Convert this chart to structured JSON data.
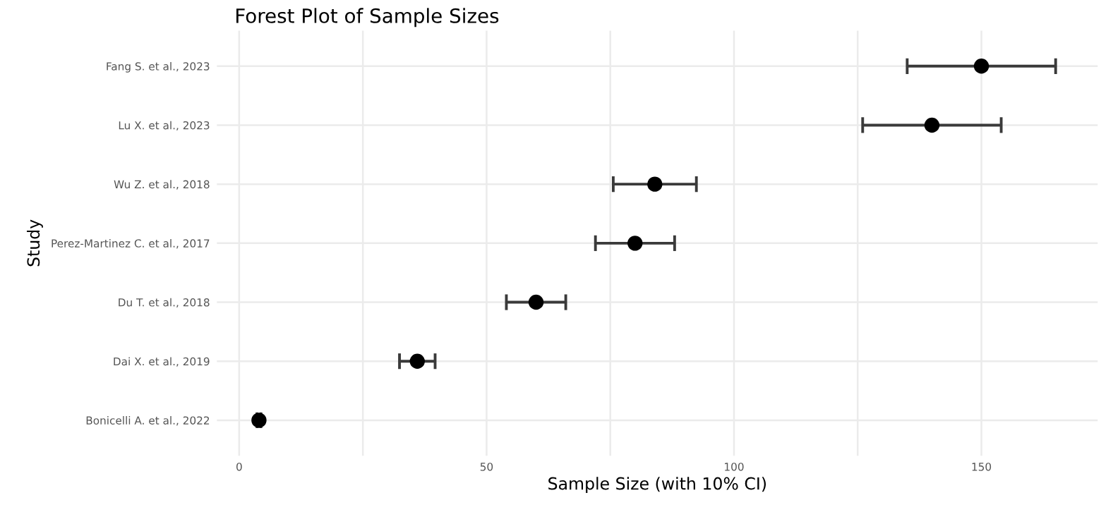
{
  "chart_data": {
    "type": "scatter",
    "orientation": "horizontal",
    "title": "Forest Plot of Sample Sizes",
    "xlabel": "Sample Size (with 10% CI)",
    "ylabel": "Study",
    "categories": [
      "Fang S. et al., 2023",
      "Lu X. et al., 2023",
      "Wu Z. et al., 2018",
      "Perez-Martinez C. et al., 2017",
      "Du T. et al., 2018",
      "Dai X. et al., 2019",
      "Bonicelli A. et al., 2022"
    ],
    "values": [
      150,
      140,
      84,
      80,
      60,
      36,
      4
    ],
    "errors": [
      15,
      14,
      8.4,
      8,
      6,
      3.6,
      0.4
    ],
    "color": "#000000",
    "marker": "circle",
    "xlim": [
      -4.5,
      173.5
    ],
    "xticks": [
      0,
      {
        "value": 25,
        "label": null
      },
      50,
      {
        "value": 75,
        "label": null
      },
      100,
      {
        "value": 125,
        "label": null
      },
      150
    ],
    "grid": true
  }
}
